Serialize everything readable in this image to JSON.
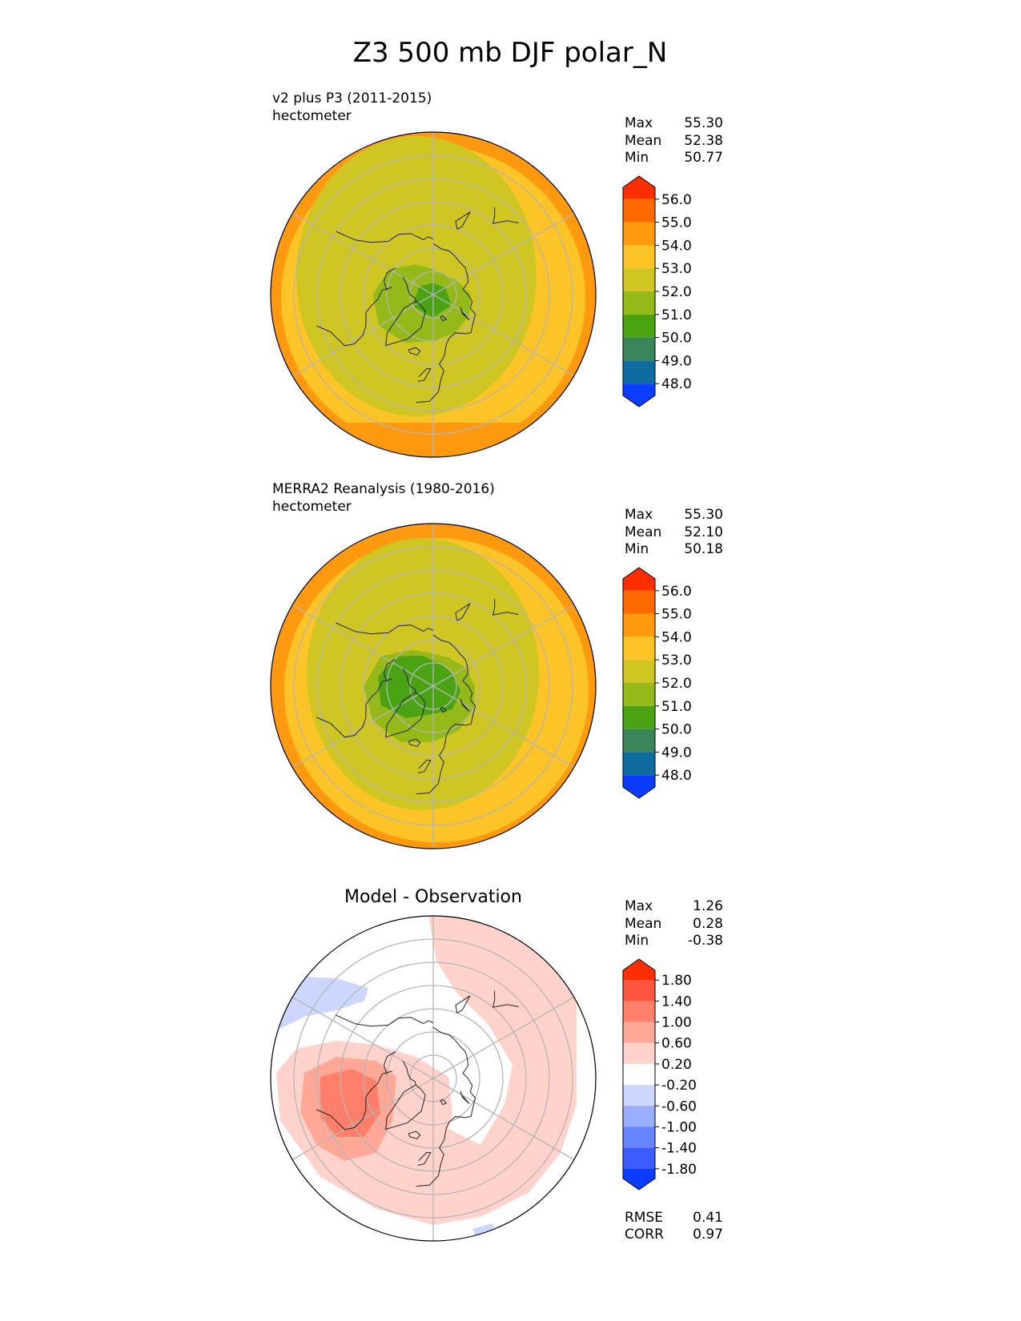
{
  "title": "Z3 500 mb DJF polar_N",
  "chart_data": [
    {
      "type": "heatmap",
      "projection": "north polar stereographic",
      "title": "",
      "subtitle_lines": [
        "v2 plus P3 (2011-2015)",
        "hectometer"
      ],
      "stats": [
        {
          "label": "Max",
          "value": "55.30"
        },
        {
          "label": "Mean",
          "value": "52.38"
        },
        {
          "label": "Min",
          "value": "50.77"
        }
      ],
      "colorbar": {
        "extend": "both",
        "ticks": [
          "56.0",
          "55.0",
          "54.0",
          "53.0",
          "52.0",
          "51.0",
          "50.0",
          "49.0",
          "48.0"
        ],
        "colors": [
          "#ff2e00",
          "#ff6a00",
          "#ff9a10",
          "#fcc427",
          "#cfc623",
          "#94b918",
          "#4aa313",
          "#3a8559",
          "#0f6ca1",
          "#0a3dff"
        ]
      },
      "contour_fill": [
        {
          "lon_lat": [
            [
              0,
              70
            ],
            [
              30,
              71
            ],
            [
              60,
              72
            ],
            [
              90,
              74
            ],
            [
              120,
              78
            ],
            [
              150,
              80
            ],
            [
              180,
              79
            ],
            [
              210,
              75
            ],
            [
              240,
              68
            ],
            [
              270,
              64
            ],
            [
              300,
              63
            ],
            [
              330,
              66
            ]
          ],
          "color": "#94b918"
        },
        {
          "lon_lat": [
            [
              0,
              80
            ],
            [
              60,
              81
            ],
            [
              120,
              84
            ],
            [
              180,
              85
            ],
            [
              240,
              83
            ],
            [
              300,
              80
            ]
          ],
          "color": "#4aa313"
        }
      ],
      "band_latitudes": [
        {
          "lat": 30,
          "color": "#ff9a10"
        },
        {
          "lat": 36,
          "color": "#fcc427"
        },
        {
          "lat": 48,
          "color": "#cfc623"
        }
      ]
    },
    {
      "type": "heatmap",
      "projection": "north polar stereographic",
      "title": "",
      "subtitle_lines": [
        "MERRA2 Reanalysis (1980-2016)",
        "hectometer"
      ],
      "stats": [
        {
          "label": "Max",
          "value": "55.30"
        },
        {
          "label": "Mean",
          "value": "52.10"
        },
        {
          "label": "Min",
          "value": "50.18"
        }
      ],
      "colorbar": {
        "extend": "both",
        "ticks": [
          "56.0",
          "55.0",
          "54.0",
          "53.0",
          "52.0",
          "51.0",
          "50.0",
          "49.0",
          "48.0"
        ],
        "colors": [
          "#ff2e00",
          "#ff6a00",
          "#ff9a10",
          "#fcc427",
          "#cfc623",
          "#94b918",
          "#4aa313",
          "#3a8559",
          "#0f6ca1",
          "#0a3dff"
        ]
      },
      "contour_fill": [
        {
          "lon_lat": [
            [
              0,
              66
            ],
            [
              30,
              68
            ],
            [
              60,
              70
            ],
            [
              90,
              72
            ],
            [
              120,
              74
            ],
            [
              150,
              76
            ],
            [
              180,
              76
            ],
            [
              210,
              72
            ],
            [
              240,
              64
            ],
            [
              270,
              60
            ],
            [
              300,
              60
            ],
            [
              330,
              62
            ]
          ],
          "color": "#94b918"
        },
        {
          "lon_lat": [
            [
              0,
              78
            ],
            [
              40,
              77
            ],
            [
              80,
              78
            ],
            [
              120,
              80
            ],
            [
              160,
              80
            ],
            [
              200,
              76
            ],
            [
              230,
              70
            ],
            [
              260,
              66
            ],
            [
              290,
              66
            ],
            [
              320,
              72
            ]
          ],
          "color": "#4aa313"
        }
      ],
      "band_latitudes": [
        {
          "lat": 30,
          "color": "#ff9a10"
        },
        {
          "lat": 36,
          "color": "#fcc427"
        },
        {
          "lat": 48,
          "color": "#cfc623"
        }
      ]
    },
    {
      "type": "heatmap",
      "projection": "north polar stereographic",
      "title": "Model - Observation",
      "subtitle_lines": [],
      "stats": [
        {
          "label": "Max",
          "value": "1.26"
        },
        {
          "label": "Mean",
          "value": "0.28"
        },
        {
          "label": "Min",
          "value": "-0.38"
        }
      ],
      "colorbar": {
        "extend": "both",
        "ticks": [
          "1.80",
          "1.40",
          "1.00",
          "0.60",
          "0.20",
          "-0.20",
          "-0.60",
          "-1.00",
          "-1.40",
          "-1.80"
        ],
        "colors": [
          "#ff2e00",
          "#ff5540",
          "#ff7f6a",
          "#ffa897",
          "#ffd3cc",
          "#ffffff",
          "#ccd6ff",
          "#9aadff",
          "#6684ff",
          "#3d5cff",
          "#0a3dff"
        ]
      },
      "footer_stats": [
        {
          "label": "RMSE",
          "value": "0.41"
        },
        {
          "label": "CORR",
          "value": "0.97"
        }
      ]
    }
  ]
}
